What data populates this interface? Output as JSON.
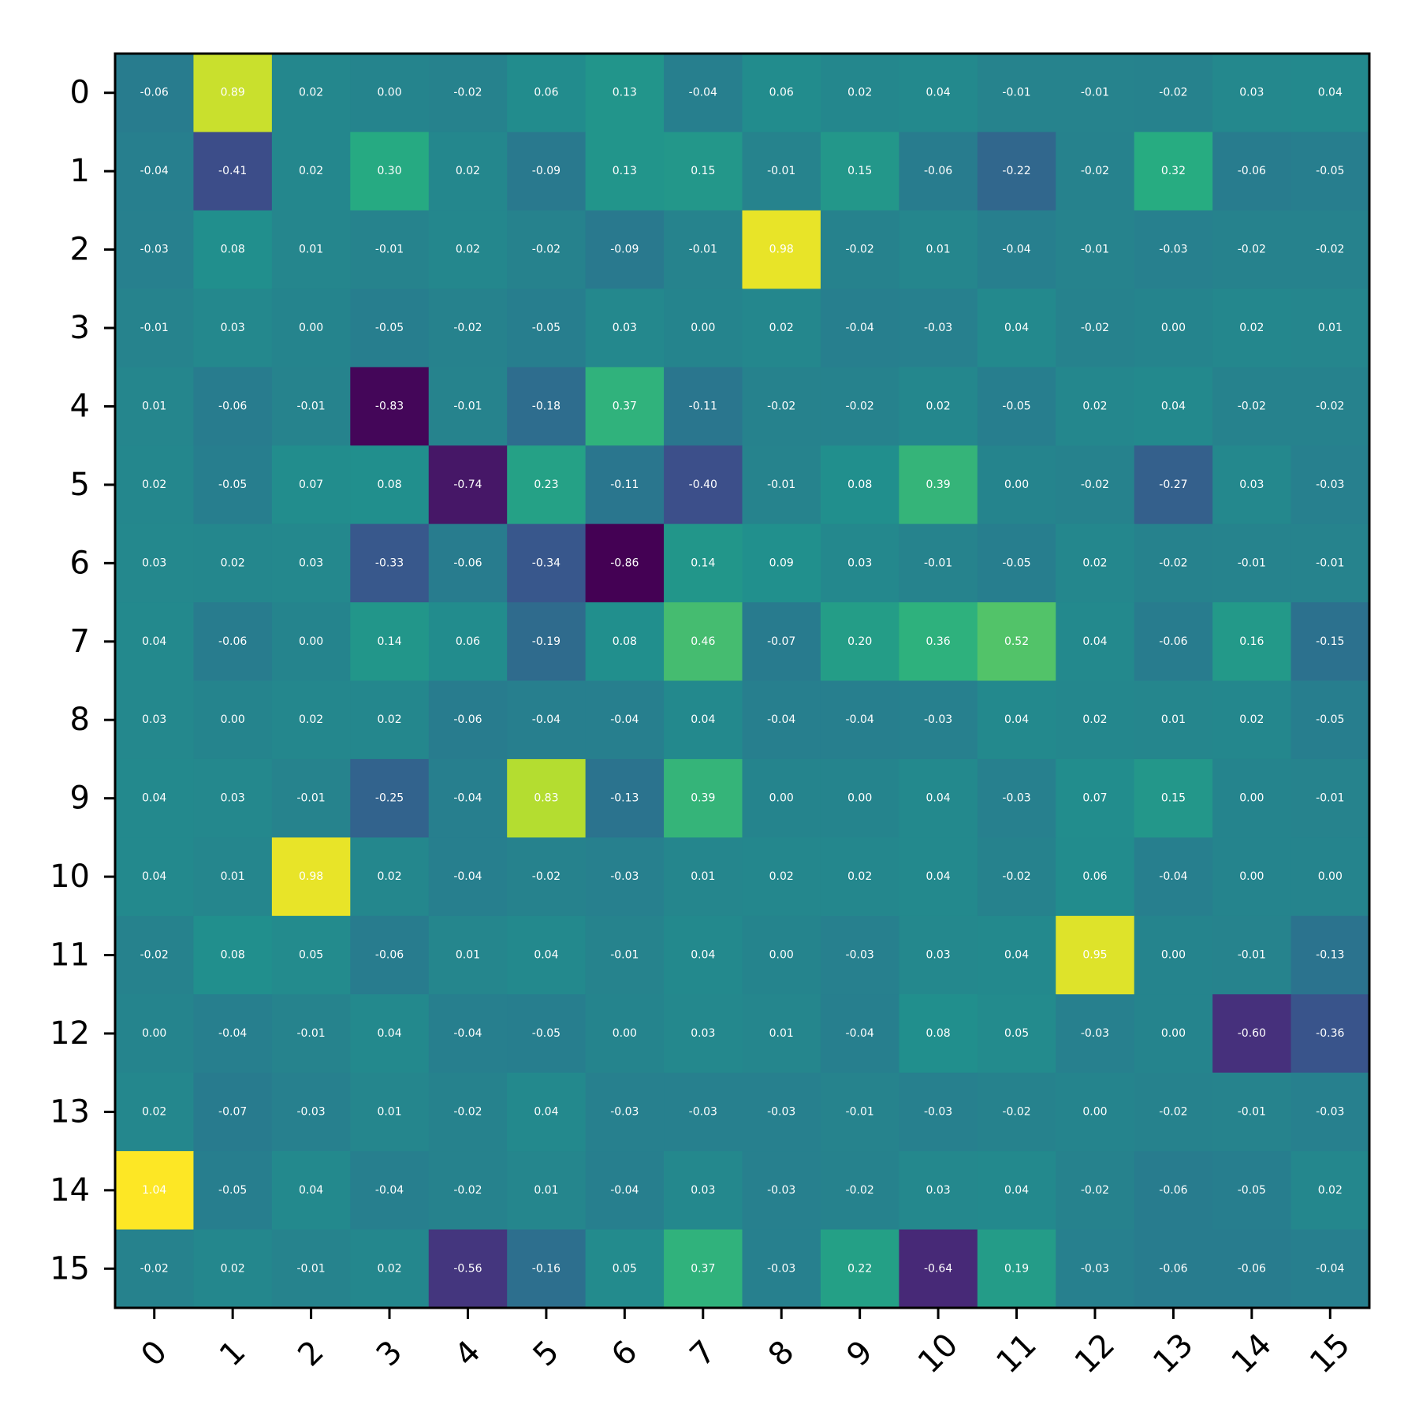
{
  "chart_data": {
    "type": "heatmap",
    "title": "",
    "xlabel": "",
    "ylabel": "",
    "x_ticks": [
      "0",
      "1",
      "2",
      "3",
      "4",
      "5",
      "6",
      "7",
      "8",
      "9",
      "10",
      "11",
      "12",
      "13",
      "14",
      "15"
    ],
    "y_ticks": [
      "0",
      "1",
      "2",
      "3",
      "4",
      "5",
      "6",
      "7",
      "8",
      "9",
      "10",
      "11",
      "12",
      "13",
      "14",
      "15"
    ],
    "colormap": "viridis",
    "value_range": [
      -0.86,
      1.04
    ],
    "cell_labels": true,
    "grid": false,
    "values": [
      [
        -0.06,
        0.89,
        0.02,
        0.0,
        -0.02,
        0.06,
        0.13,
        -0.04,
        0.06,
        0.02,
        0.04,
        -0.01,
        -0.01,
        -0.02,
        0.03,
        0.04
      ],
      [
        -0.04,
        -0.41,
        0.02,
        0.3,
        0.02,
        -0.09,
        0.13,
        0.15,
        -0.01,
        0.15,
        -0.06,
        -0.22,
        -0.02,
        0.32,
        -0.06,
        -0.05
      ],
      [
        -0.03,
        0.08,
        0.01,
        -0.01,
        0.02,
        -0.02,
        -0.09,
        -0.01,
        0.98,
        -0.02,
        0.01,
        -0.04,
        -0.01,
        -0.03,
        -0.02,
        -0.02
      ],
      [
        -0.01,
        0.03,
        -0.0,
        -0.05,
        -0.02,
        -0.05,
        0.03,
        0.0,
        0.02,
        -0.04,
        -0.03,
        0.04,
        -0.02,
        0.0,
        0.02,
        0.01
      ],
      [
        0.01,
        -0.06,
        -0.01,
        -0.83,
        -0.01,
        -0.18,
        0.37,
        -0.11,
        -0.02,
        -0.02,
        0.02,
        -0.05,
        0.02,
        0.04,
        -0.02,
        -0.02
      ],
      [
        0.02,
        -0.05,
        0.07,
        0.08,
        -0.74,
        0.23,
        -0.11,
        -0.4,
        -0.01,
        0.08,
        0.39,
        0.0,
        -0.02,
        -0.27,
        0.03,
        -0.03
      ],
      [
        0.03,
        0.02,
        0.03,
        -0.33,
        -0.06,
        -0.34,
        -0.86,
        0.14,
        0.09,
        0.03,
        -0.01,
        -0.05,
        0.02,
        -0.02,
        -0.01,
        -0.01
      ],
      [
        0.04,
        -0.06,
        0.0,
        0.14,
        0.06,
        -0.19,
        0.08,
        0.46,
        -0.07,
        0.2,
        0.36,
        0.52,
        0.04,
        -0.06,
        0.16,
        -0.15
      ],
      [
        0.03,
        0.0,
        0.02,
        0.02,
        -0.06,
        -0.04,
        -0.04,
        0.04,
        -0.04,
        -0.04,
        -0.03,
        0.04,
        0.02,
        0.01,
        0.02,
        -0.05
      ],
      [
        0.04,
        0.03,
        -0.01,
        -0.25,
        -0.04,
        0.83,
        -0.13,
        0.39,
        0.0,
        -0.0,
        0.04,
        -0.03,
        0.07,
        0.15,
        -0.0,
        -0.01
      ],
      [
        0.04,
        0.01,
        0.98,
        0.02,
        -0.04,
        -0.02,
        -0.03,
        0.01,
        0.02,
        0.02,
        0.04,
        -0.02,
        0.06,
        -0.04,
        -0.0,
        0.0
      ],
      [
        -0.02,
        0.08,
        0.05,
        -0.06,
        0.01,
        0.04,
        -0.01,
        0.04,
        -0.0,
        -0.03,
        0.03,
        0.04,
        0.95,
        -0.0,
        -0.01,
        -0.13
      ],
      [
        0.0,
        -0.04,
        -0.01,
        0.04,
        -0.04,
        -0.05,
        -0.0,
        0.03,
        0.01,
        -0.04,
        0.08,
        0.05,
        -0.03,
        -0.0,
        -0.6,
        -0.36
      ],
      [
        0.02,
        -0.07,
        -0.03,
        0.01,
        -0.02,
        0.04,
        -0.03,
        -0.03,
        -0.03,
        -0.01,
        -0.03,
        -0.02,
        0.0,
        -0.02,
        -0.01,
        -0.03
      ],
      [
        1.04,
        -0.05,
        0.04,
        -0.04,
        -0.02,
        0.01,
        -0.04,
        0.03,
        -0.03,
        -0.02,
        0.03,
        0.04,
        -0.02,
        -0.06,
        -0.05,
        0.02
      ],
      [
        -0.02,
        0.02,
        -0.01,
        0.02,
        -0.56,
        -0.16,
        0.05,
        0.37,
        -0.03,
        0.22,
        -0.64,
        0.19,
        -0.03,
        -0.06,
        -0.06,
        -0.04
      ]
    ]
  }
}
